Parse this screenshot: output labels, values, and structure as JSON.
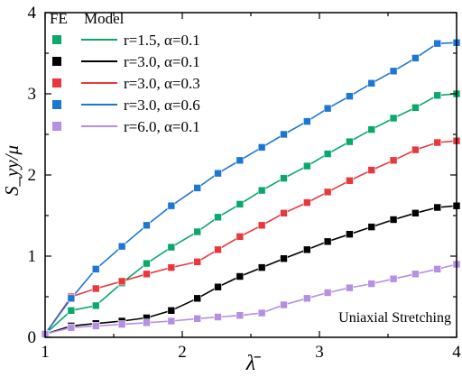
{
  "chart_data": {
    "type": "line",
    "xlabel": "λ̄",
    "ylabel": "S_yy/μ",
    "xlim": [
      1,
      4
    ],
    "ylim": [
      0,
      4
    ],
    "x_ticks": [
      "1",
      "2",
      "3",
      "4"
    ],
    "y_ticks": [
      "0",
      "1",
      "2",
      "3",
      "4"
    ],
    "legend_header": {
      "fe": "FE",
      "model": "Model"
    },
    "legend_position": "top-left",
    "annotation": "Uniaxial Stretching",
    "series": [
      {
        "name": "r=1.5, α=0.1",
        "color": "#0aa86a",
        "fe": {
          "x": [
            1.0,
            1.19,
            1.37,
            1.56,
            1.74,
            1.92,
            2.11,
            2.26,
            2.42,
            2.58,
            2.74,
            2.91,
            3.06,
            3.22,
            3.38,
            3.54,
            3.7,
            3.86,
            4.0
          ],
          "y": [
            0.04,
            0.33,
            0.39,
            0.67,
            0.91,
            1.11,
            1.3,
            1.48,
            1.64,
            1.81,
            1.96,
            2.11,
            2.26,
            2.41,
            2.56,
            2.7,
            2.83,
            2.98,
            3.0
          ]
        }
      },
      {
        "name": "r=3.0, α=0.1",
        "color": "#000000",
        "fe": {
          "x": [
            1.0,
            1.19,
            1.37,
            1.56,
            1.74,
            1.92,
            2.11,
            2.26,
            2.42,
            2.58,
            2.74,
            2.91,
            3.06,
            3.22,
            3.38,
            3.54,
            3.7,
            3.86,
            4.0
          ],
          "y": [
            0.04,
            0.14,
            0.17,
            0.2,
            0.24,
            0.33,
            0.48,
            0.62,
            0.75,
            0.86,
            0.97,
            1.08,
            1.18,
            1.27,
            1.36,
            1.45,
            1.53,
            1.6,
            1.62
          ]
        }
      },
      {
        "name": "r=3.0, α=0.3",
        "color": "#e8383d",
        "fe": {
          "x": [
            1.0,
            1.19,
            1.37,
            1.56,
            1.74,
            1.92,
            2.11,
            2.26,
            2.42,
            2.58,
            2.74,
            2.91,
            3.06,
            3.22,
            3.38,
            3.54,
            3.7,
            3.86,
            4.0
          ],
          "y": [
            0.04,
            0.5,
            0.6,
            0.69,
            0.78,
            0.86,
            0.93,
            1.08,
            1.24,
            1.38,
            1.53,
            1.66,
            1.79,
            1.93,
            2.06,
            2.18,
            2.31,
            2.4,
            2.42
          ]
        }
      },
      {
        "name": "r=3.0, α=0.6",
        "color": "#1f77d4",
        "fe": {
          "x": [
            1.0,
            1.19,
            1.37,
            1.56,
            1.74,
            1.92,
            2.11,
            2.26,
            2.42,
            2.58,
            2.74,
            2.91,
            3.06,
            3.22,
            3.38,
            3.54,
            3.7,
            3.86,
            4.0
          ],
          "y": [
            0.04,
            0.48,
            0.84,
            1.12,
            1.38,
            1.62,
            1.84,
            2.02,
            2.18,
            2.34,
            2.5,
            2.66,
            2.82,
            2.97,
            3.13,
            3.28,
            3.44,
            3.62,
            3.63
          ]
        }
      },
      {
        "name": "r=6.0, α=0.1",
        "color": "#b48fe3",
        "fe": {
          "x": [
            1.0,
            1.19,
            1.37,
            1.56,
            1.74,
            1.92,
            2.11,
            2.26,
            2.42,
            2.58,
            2.74,
            2.91,
            3.06,
            3.22,
            3.38,
            3.54,
            3.7,
            3.86,
            4.0
          ],
          "y": [
            0.04,
            0.12,
            0.14,
            0.16,
            0.18,
            0.2,
            0.23,
            0.25,
            0.27,
            0.3,
            0.4,
            0.48,
            0.55,
            0.61,
            0.66,
            0.72,
            0.78,
            0.84,
            0.9
          ]
        }
      }
    ]
  }
}
